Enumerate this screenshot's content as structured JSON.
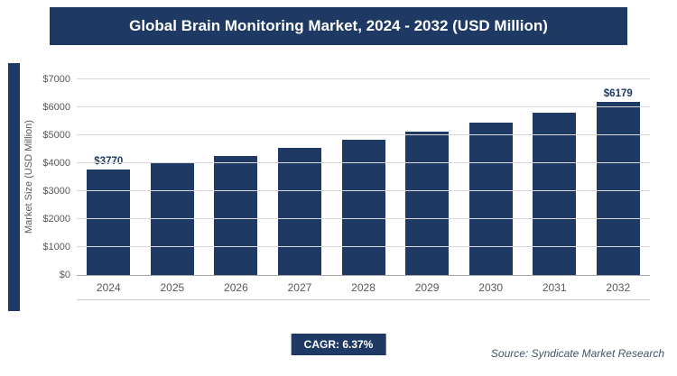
{
  "title": "Global Brain Monitoring Market, 2024 - 2032 (USD Million)",
  "chart_data": {
    "type": "bar",
    "title": "Global Brain Monitoring Market, 2024 - 2032 (USD Million)",
    "categories": [
      "2024",
      "2025",
      "2026",
      "2027",
      "2028",
      "2029",
      "2030",
      "2031",
      "2032"
    ],
    "values": [
      3770,
      4010,
      4266,
      4537,
      4826,
      5134,
      5461,
      5809,
      6179
    ],
    "value_labels": [
      "$3770",
      "",
      "",
      "",
      "",
      "",
      "",
      "",
      "$6179"
    ],
    "xlabel": "",
    "ylabel": "Market Size (USD Million)",
    "ylim": [
      0,
      7000
    ],
    "yticks": [
      0,
      1000,
      2000,
      3000,
      4000,
      5000,
      6000,
      7000
    ],
    "ytick_labels": [
      "$0",
      "$1000",
      "$2000",
      "$3000",
      "$4000",
      "$5000",
      "$6000",
      "$7000"
    ],
    "grid": true,
    "legend": "none",
    "bar_color": "#1e3a64"
  },
  "footer": {
    "cagr": "CAGR: 6.37%",
    "source": "Source: Syndicate Market Research"
  },
  "colors": {
    "navy": "#1e3a64",
    "grid": "#d9d9d9",
    "axis_text": "#595959",
    "source_text": "#44546a"
  }
}
